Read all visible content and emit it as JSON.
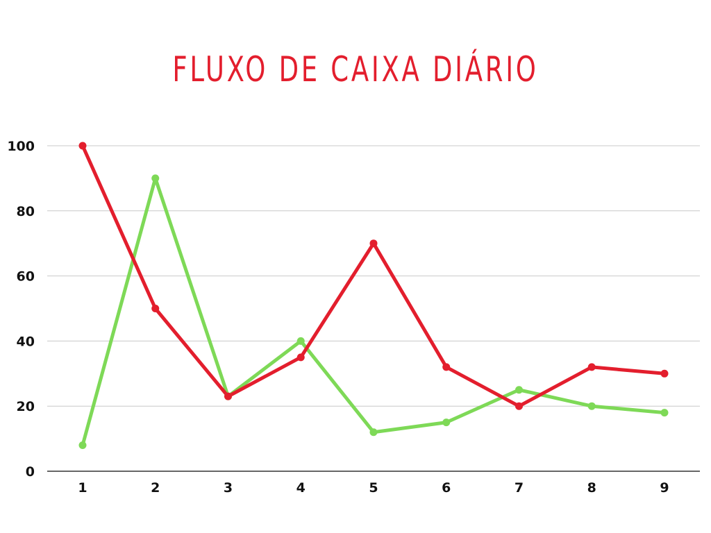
{
  "chart_data": {
    "type": "line",
    "title": "FLUXO DE CAIXA DIÁRIO",
    "xlabel": "",
    "ylabel": "",
    "x": [
      "1",
      "2",
      "3",
      "4",
      "5",
      "6",
      "7",
      "8",
      "9"
    ],
    "series": [
      {
        "values": [
          100,
          50,
          23,
          35,
          70,
          32,
          20,
          32,
          30
        ],
        "color": "#e31e2d"
      },
      {
        "values": [
          8,
          90,
          23,
          40,
          12,
          15,
          25,
          20,
          18
        ],
        "color": "#7ed957"
      }
    ],
    "yticks": [
      "0",
      "20",
      "40",
      "60",
      "80",
      "100"
    ],
    "ylim": [
      0,
      100
    ],
    "grid": true,
    "legend": "none",
    "colors": {
      "title": "#e31e2d",
      "grid": "#c8c8c8",
      "axis": "#333333",
      "tick_text": "#111111"
    }
  }
}
